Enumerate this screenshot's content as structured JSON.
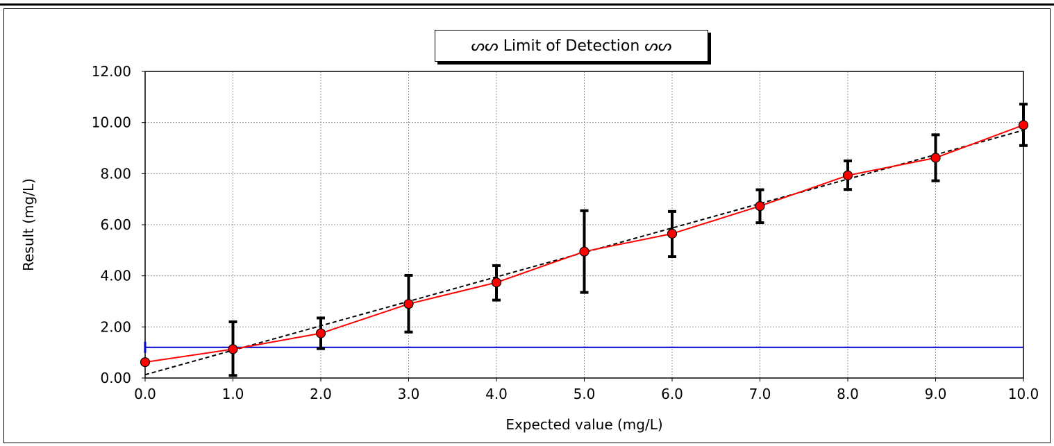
{
  "chart_data": {
    "type": "line",
    "title": "ꩵꩵ Limit of Detection ꩵꩵ",
    "title_display": "ᔕᔕ Limit of Detection ᔕᔕ",
    "xlabel": "Expected value (mg/L)",
    "ylabel": "Result (mg/L)",
    "xlim": [
      0,
      10
    ],
    "ylim": [
      0,
      12
    ],
    "x_ticks": [
      "0.0",
      "1.0",
      "2.0",
      "3.0",
      "4.0",
      "5.0",
      "6.0",
      "7.0",
      "8.0",
      "9.0",
      "10.0"
    ],
    "y_ticks": [
      "0.00",
      "2.00",
      "4.00",
      "6.00",
      "8.00",
      "10.00",
      "12.00"
    ],
    "grid": true,
    "series": [
      {
        "kind": "measured",
        "color": "#ff0000",
        "x": [
          0,
          1,
          2,
          3,
          4,
          5,
          6,
          7,
          8,
          9,
          10
        ],
        "y": [
          0.62,
          1.13,
          1.75,
          2.9,
          3.74,
          4.95,
          5.65,
          6.73,
          7.93,
          8.62,
          9.9
        ],
        "error_low": [
          null,
          0.1,
          1.15,
          1.8,
          3.05,
          3.35,
          4.75,
          6.08,
          7.38,
          7.72,
          9.1
        ],
        "error_high": [
          null,
          2.2,
          2.35,
          4.02,
          4.4,
          6.55,
          6.52,
          7.37,
          8.5,
          9.52,
          10.72
        ]
      },
      {
        "kind": "regression",
        "color": "#000000",
        "style": "dashed",
        "x": [
          0,
          10
        ],
        "y": [
          0.13,
          9.7
        ]
      },
      {
        "kind": "limit-of-detection",
        "color": "#0000cc",
        "y": 1.2
      }
    ]
  }
}
